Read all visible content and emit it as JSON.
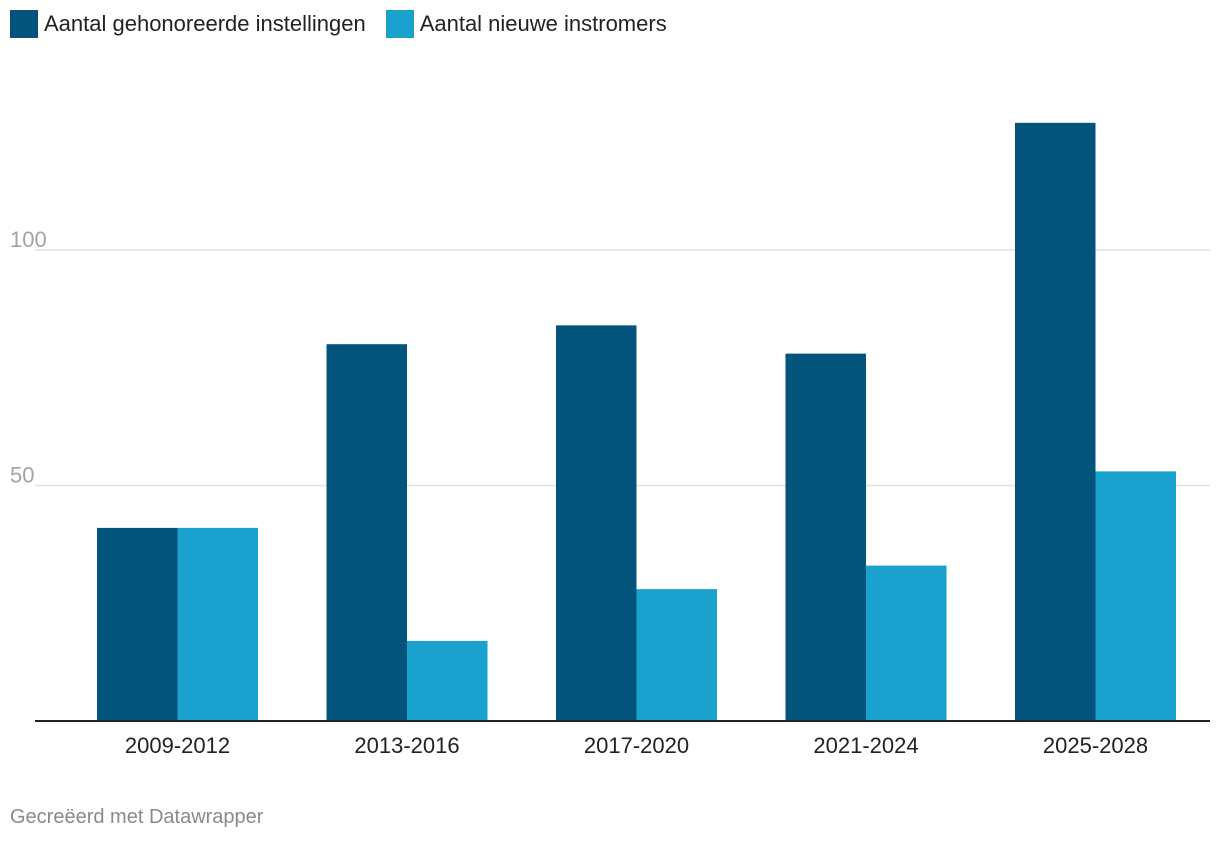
{
  "legend": [
    {
      "label": "Aantal gehonoreerde instellingen",
      "color": "#02547d"
    },
    {
      "label": "Aantal nieuwe instromers",
      "color": "#1aa1ce"
    }
  ],
  "footer": "Gecreëerd met Datawrapper",
  "chart_data": {
    "type": "bar",
    "categories": [
      "2009-2012",
      "2013-2016",
      "2017-2020",
      "2021-2024",
      "2025-2028"
    ],
    "series": [
      {
        "name": "Aantal gehonoreerde instellingen",
        "color": "#02547d",
        "values": [
          41,
          80,
          84,
          78,
          127
        ]
      },
      {
        "name": "Aantal nieuwe instromers",
        "color": "#1aa1ce",
        "values": [
          41,
          17,
          28,
          33,
          53
        ]
      }
    ],
    "yticks": [
      50,
      100
    ],
    "ylim": [
      0,
      140
    ],
    "grid": true,
    "legend_position": "top-left",
    "title": "",
    "xlabel": "",
    "ylabel": ""
  }
}
